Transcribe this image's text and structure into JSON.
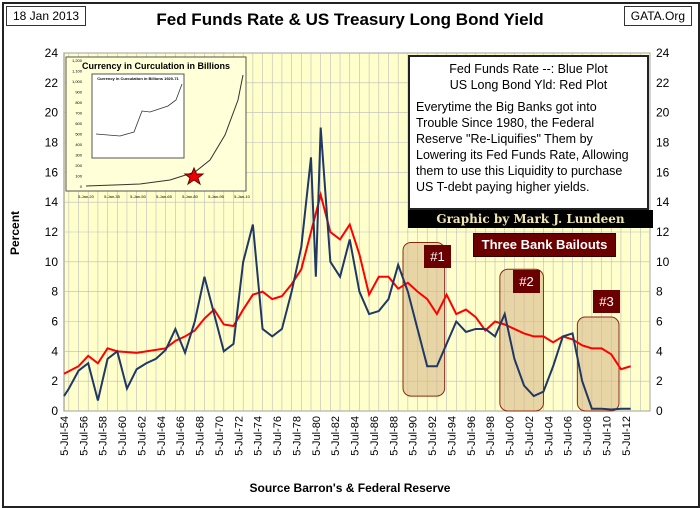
{
  "header": {
    "date": "18 Jan 2013",
    "title": "Fed Funds Rate & US Treasury Long Bond Yield",
    "site": "GATA.Org"
  },
  "legend": {
    "line1": "Fed Funds Rate --:  Blue Plot",
    "line2": "US Long Bond Yld:  Red Plot",
    "body": "Everytime the Big Banks got into Trouble Since 1980, the Federal Reserve \"Re-Liquifies\" Them by Lowering its Fed Funds Rate, Allowing them to use this Liquidity to purchase US T-debt paying higher  yields."
  },
  "credit": "Graphic by Mark J. Lundeen",
  "bailouts": {
    "title": "Three Bank Bailouts",
    "labels": [
      "#1",
      "#2",
      "#3"
    ],
    "periods": [
      [
        1989.5,
        1993.8,
        1,
        11.3
      ],
      [
        1999.5,
        2004,
        0,
        9.5
      ],
      [
        2007.5,
        2011.8,
        0,
        6.3
      ]
    ]
  },
  "source": "Source Barron's & Federal Reserve",
  "inset": {
    "title": "Currency in Curculation in Billions",
    "inner_title": "Currency in Curculation in Billions 1920-71",
    "yticks": [
      "0",
      "100",
      "200",
      "300",
      "400",
      "500",
      "600",
      "700",
      "800",
      "900",
      "1,000",
      "1,100",
      "1,200"
    ],
    "xticks": [
      "5-Jan-20",
      "5-Jan-35",
      "5-Jan-50",
      "5-Jan-65",
      "5-Jan-80",
      "5-Jan-95",
      "5-Jan-10"
    ]
  },
  "chart_data": {
    "type": "line",
    "title": "Fed Funds Rate & US Treasury Long Bond Yield",
    "xlabel": "Source Barron's & Federal Reserve",
    "ylabel": "Percent",
    "ylim": [
      0,
      24
    ],
    "yticks": [
      0,
      2,
      4,
      6,
      8,
      10,
      12,
      14,
      16,
      18,
      20,
      22,
      24
    ],
    "xlim": [
      1954.5,
      2015
    ],
    "grid": true,
    "xtick_labels": [
      "5-Jul-54",
      "5-Jul-56",
      "5-Jul-58",
      "5-Jul-60",
      "5-Jul-62",
      "5-Jul-64",
      "5-Jul-66",
      "5-Jul-68",
      "5-Jul-70",
      "5-Jul-72",
      "5-Jul-74",
      "5-Jul-76",
      "5-Jul-78",
      "5-Jul-80",
      "5-Jul-82",
      "5-Jul-84",
      "5-Jul-86",
      "5-Jul-88",
      "5-Jul-90",
      "5-Jul-92",
      "5-Jul-94",
      "5-Jul-96",
      "5-Jul-98",
      "5-Jul-00",
      "5-Jul-02",
      "5-Jul-04",
      "5-Jul-06",
      "5-Jul-08",
      "5-Jul-10",
      "5-Jul-12"
    ],
    "colors": {
      "fed_funds": "#1f3864",
      "long_bond": "#ff0000",
      "plot_bg": "#ffffcc"
    },
    "series": [
      {
        "name": "Fed Funds Rate",
        "color": "#1f3864",
        "x": [
          1954.5,
          1955,
          1956,
          1957,
          1958,
          1959,
          1960,
          1961,
          1962,
          1963,
          1964,
          1965,
          1966,
          1967,
          1968,
          1969,
          1970,
          1971,
          1972,
          1973,
          1974,
          1975,
          1976,
          1977,
          1978,
          1979,
          1980,
          1980.5,
          1981,
          1982,
          1983,
          1984,
          1985,
          1986,
          1987,
          1988,
          1989,
          1990,
          1991,
          1992,
          1993,
          1994,
          1995,
          1996,
          1997,
          1998,
          1999,
          2000,
          2001,
          2002,
          2003,
          2004,
          2005,
          2006,
          2007,
          2008,
          2009,
          2010,
          2011,
          2012,
          2013
        ],
        "y": [
          1,
          1.5,
          2.7,
          3.2,
          0.7,
          3.5,
          4,
          1.5,
          2.8,
          3.2,
          3.5,
          4.1,
          5.5,
          3.9,
          6,
          9,
          6.5,
          4,
          4.5,
          10,
          12.5,
          5.5,
          5,
          5.5,
          8,
          11,
          17,
          9,
          19,
          10,
          9,
          11.5,
          8,
          6.5,
          6.7,
          7.5,
          9.8,
          8,
          5.5,
          3,
          3,
          4.5,
          6,
          5.3,
          5.5,
          5.5,
          5,
          6.5,
          3.5,
          1.7,
          1,
          1.3,
          3,
          5,
          5.2,
          2,
          0.15,
          0.15,
          0.1,
          0.15,
          0.15
        ]
      },
      {
        "name": "US Long Bond Yld",
        "color": "#ff0000",
        "x": [
          1954.5,
          1956,
          1957,
          1958,
          1959,
          1960,
          1962,
          1965,
          1966,
          1967,
          1968,
          1969,
          1970,
          1971,
          1972,
          1973,
          1974,
          1975,
          1976,
          1977,
          1978,
          1979,
          1980,
          1981,
          1982,
          1983,
          1984,
          1985,
          1986,
          1987,
          1988,
          1989,
          1990,
          1991,
          1992,
          1993,
          1994,
          1995,
          1996,
          1997,
          1998,
          1999,
          2000,
          2001,
          2002,
          2003,
          2004,
          2005,
          2006,
          2007,
          2008,
          2009,
          2010,
          2011,
          2012,
          2013
        ],
        "y": [
          2.5,
          3,
          3.7,
          3.2,
          4.2,
          4,
          3.9,
          4.2,
          4.7,
          5,
          5.4,
          6.2,
          6.8,
          5.8,
          5.7,
          6.8,
          7.8,
          8,
          7.5,
          7.7,
          8.5,
          9.5,
          12,
          14.5,
          12,
          11.5,
          12.5,
          10.5,
          7.8,
          9,
          9,
          8.2,
          8.6,
          8,
          7.5,
          6.5,
          7.8,
          6.5,
          6.8,
          6.3,
          5.4,
          6,
          5.8,
          5.5,
          5.2,
          5,
          5,
          4.6,
          5,
          4.8,
          4.4,
          4.2,
          4.2,
          3.8,
          2.8,
          3
        ]
      }
    ]
  }
}
